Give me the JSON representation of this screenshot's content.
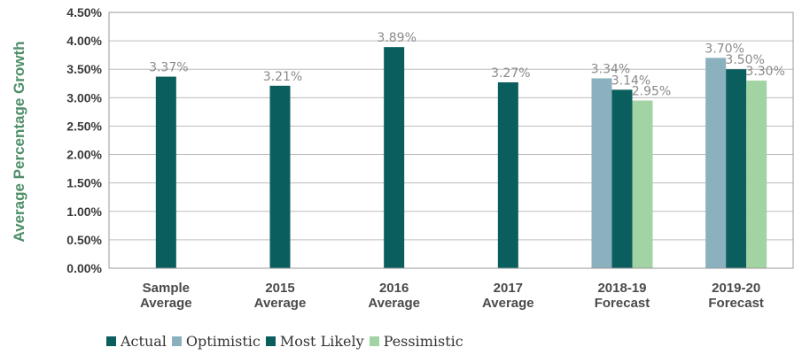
{
  "chart_data": {
    "type": "bar",
    "ylabel": "Average Percentage Growth",
    "ylim": [
      0,
      4.5
    ],
    "yticks": [
      "0.00%",
      "0.50%",
      "1.00%",
      "1.50%",
      "2.00%",
      "2.50%",
      "3.00%",
      "3.50%",
      "4.00%",
      "4.50%"
    ],
    "grid": true,
    "legend_position": "bottom-left",
    "categories": [
      [
        "Sample",
        "Average"
      ],
      [
        "2015",
        "Average"
      ],
      [
        "2016",
        "Average"
      ],
      [
        "2017",
        "Average"
      ],
      [
        "2018-19",
        "Forecast"
      ],
      [
        "2019-20",
        "Forecast"
      ]
    ],
    "series": [
      {
        "name": "Actual",
        "color": "#0a5f5e",
        "values": [
          3.37,
          3.21,
          3.89,
          3.27,
          null,
          null
        ],
        "labels": [
          "3.37%",
          "3.21%",
          "3.89%",
          "3.27%",
          null,
          null
        ]
      },
      {
        "name": "Optimistic",
        "color": "#8bb0be",
        "values": [
          null,
          null,
          null,
          null,
          3.34,
          3.7
        ],
        "labels": [
          null,
          null,
          null,
          null,
          "3.34%",
          "3.70%"
        ]
      },
      {
        "name": "Most Likely",
        "color": "#0a5f5e",
        "values": [
          null,
          null,
          null,
          null,
          3.14,
          3.5
        ],
        "labels": [
          null,
          null,
          null,
          null,
          "3.14%",
          "3.50%"
        ]
      },
      {
        "name": "Pessimistic",
        "color": "#a2d3a2",
        "values": [
          null,
          null,
          null,
          null,
          2.95,
          3.3
        ],
        "labels": [
          null,
          null,
          null,
          null,
          "2.95%",
          "3.30%"
        ]
      }
    ]
  }
}
